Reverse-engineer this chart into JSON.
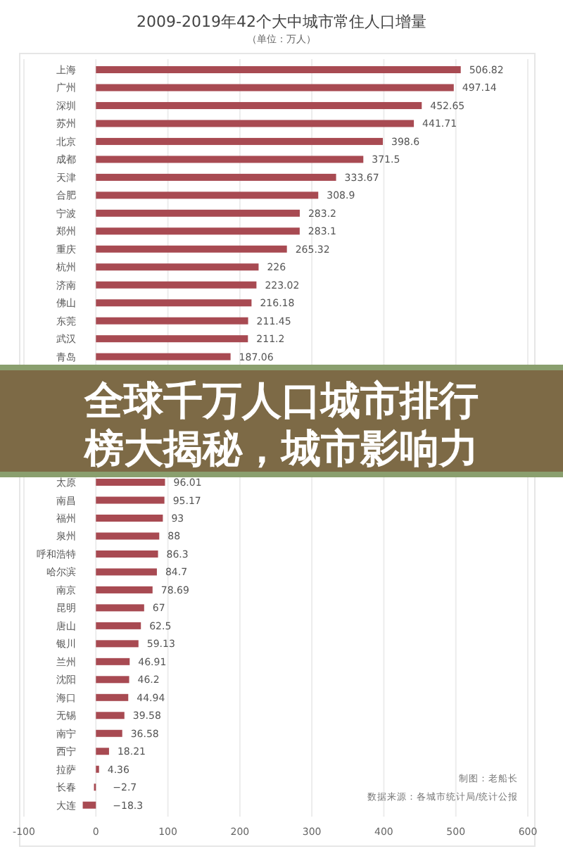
{
  "chart_data": {
    "type": "bar",
    "orientation": "horizontal",
    "title": "2009-2019年42个大中城市常住人口增量",
    "subtitle": "（单位：万人）",
    "categories": [
      "上海",
      "广州",
      "深圳",
      "苏州",
      "北京",
      "成都",
      "天津",
      "合肥",
      "宁波",
      "郑州",
      "重庆",
      "杭州",
      "济南",
      "佛山",
      "东莞",
      "武汉",
      "青岛",
      null,
      null,
      null,
      null,
      null,
      null,
      "太原",
      "南昌",
      "福州",
      "泉州",
      "呼和浩特",
      "哈尔滨",
      "南京",
      "昆明",
      "唐山",
      "银川",
      "兰州",
      "沈阳",
      "海口",
      "无锡",
      "南宁",
      "西宁",
      "拉萨",
      "长春",
      "大连"
    ],
    "values": [
      506.82,
      497.14,
      452.65,
      441.71,
      398.6,
      371.5,
      333.67,
      308.9,
      283.2,
      283.1,
      265.32,
      226,
      223.02,
      216.18,
      211.45,
      211.2,
      187.06,
      null,
      null,
      null,
      null,
      null,
      null,
      96.01,
      95.17,
      93,
      88,
      86.3,
      84.7,
      78.69,
      67,
      62.5,
      59.13,
      46.91,
      46.2,
      44.94,
      39.58,
      36.58,
      18.21,
      4.36,
      -2.7,
      -18.3
    ],
    "color": "#a84a52",
    "data_labels": true,
    "grid": "x",
    "xlim": [
      -100,
      600
    ],
    "xticks": [
      -100,
      0,
      100,
      200,
      300,
      400,
      500,
      600
    ],
    "annotations": [
      "制图：老船长",
      "数据来源：各城市统计局/统计公报",
      "全球千万人口城市排行榜大揭秘，城市影响力"
    ]
  }
}
